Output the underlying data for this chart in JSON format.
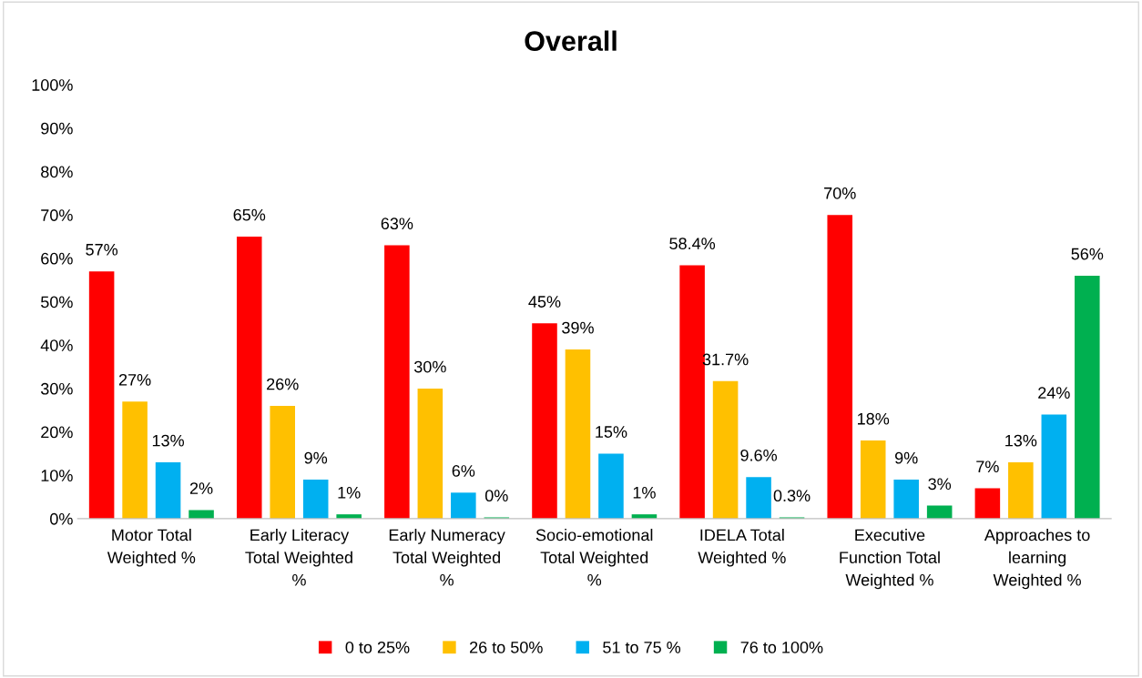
{
  "chart_data": {
    "type": "bar",
    "title": "Overall",
    "categories": [
      "Motor Total\nWeighted %",
      "Early Literacy\nTotal Weighted\n%",
      "Early Numeracy\nTotal Weighted\n%",
      "Socio-emotional\nTotal Weighted\n%",
      "IDELA Total\nWeighted %",
      "Executive\nFunction Total\nWeighted %",
      "Approaches to\nlearning\nWeighted %"
    ],
    "series": [
      {
        "name": "0 to 25%",
        "color": "#ff0000",
        "values": [
          57,
          65,
          63,
          45,
          58.4,
          70,
          7
        ],
        "value_labels": [
          "57%",
          "65%",
          "63%",
          "45%",
          "58.4%",
          "70%",
          "7%"
        ]
      },
      {
        "name": "26 to 50%",
        "color": "#ffc000",
        "values": [
          27,
          26,
          30,
          39,
          31.7,
          18,
          13
        ],
        "value_labels": [
          "27%",
          "26%",
          "30%",
          "39%",
          "31.7%",
          "18%",
          "13%"
        ]
      },
      {
        "name": "51 to 75 %",
        "color": "#00b0f0",
        "values": [
          13,
          9,
          6,
          15,
          9.6,
          9,
          24
        ],
        "value_labels": [
          "13%",
          "9%",
          "6%",
          "15%",
          "9.6%",
          "9%",
          "24%"
        ]
      },
      {
        "name": "76 to 100%",
        "color": "#00b050",
        "values": [
          2,
          1,
          0.3,
          1,
          0.3,
          3,
          56
        ],
        "value_labels": [
          "2%",
          "1%",
          "0%",
          "1%",
          "0.3%",
          "3%",
          "56%"
        ]
      }
    ],
    "ylim": [
      0,
      100
    ],
    "yticks": [
      {
        "value": 0,
        "label": "0%"
      },
      {
        "value": 10,
        "label": "10%"
      },
      {
        "value": 20,
        "label": "20%"
      },
      {
        "value": 30,
        "label": "30%"
      },
      {
        "value": 40,
        "label": "40%"
      },
      {
        "value": 50,
        "label": "50%"
      },
      {
        "value": 60,
        "label": "60%"
      },
      {
        "value": 70,
        "label": "70%"
      },
      {
        "value": 80,
        "label": "80%"
      },
      {
        "value": 90,
        "label": "90%"
      },
      {
        "value": 100,
        "label": "100%"
      }
    ],
    "grid": false,
    "legend": "bottom"
  }
}
